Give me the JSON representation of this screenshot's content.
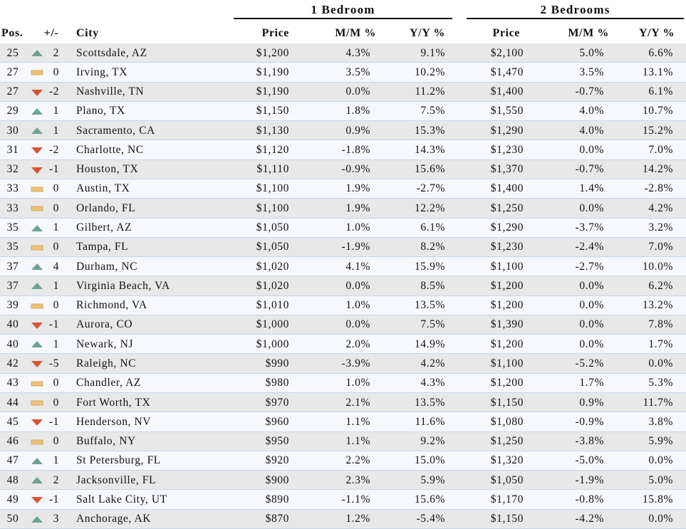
{
  "table": {
    "groups": [
      "1 Bedroom",
      "2 Bedrooms"
    ],
    "columns": [
      "Pos.",
      "+/-",
      "City",
      "Price",
      "M/M %",
      "Y/Y %",
      "Price",
      "M/M %",
      "Y/Y %"
    ],
    "rows": [
      [
        "25",
        "2",
        "Scottsdale, AZ",
        "$1,200",
        "4.3%",
        "9.1%",
        "$2,100",
        "5.0%",
        "6.6%"
      ],
      [
        "27",
        "0",
        "Irving, TX",
        "$1,190",
        "3.5%",
        "10.2%",
        "$1,470",
        "3.5%",
        "13.1%"
      ],
      [
        "27",
        "-2",
        "Nashville, TN",
        "$1,190",
        "0.0%",
        "11.2%",
        "$1,400",
        "-0.7%",
        "6.1%"
      ],
      [
        "29",
        "1",
        "Plano, TX",
        "$1,150",
        "1.8%",
        "7.5%",
        "$1,550",
        "4.0%",
        "10.7%"
      ],
      [
        "30",
        "1",
        "Sacramento, CA",
        "$1,130",
        "0.9%",
        "15.3%",
        "$1,290",
        "4.0%",
        "15.2%"
      ],
      [
        "31",
        "-2",
        "Charlotte, NC",
        "$1,120",
        "-1.8%",
        "14.3%",
        "$1,230",
        "0.0%",
        "7.0%"
      ],
      [
        "32",
        "-1",
        "Houston, TX",
        "$1,110",
        "-0.9%",
        "15.6%",
        "$1,370",
        "-0.7%",
        "14.2%"
      ],
      [
        "33",
        "0",
        "Austin, TX",
        "$1,100",
        "1.9%",
        "-2.7%",
        "$1,400",
        "1.4%",
        "-2.8%"
      ],
      [
        "33",
        "0",
        "Orlando, FL",
        "$1,100",
        "1.9%",
        "12.2%",
        "$1,250",
        "0.0%",
        "4.2%"
      ],
      [
        "35",
        "1",
        "Gilbert, AZ",
        "$1,050",
        "1.0%",
        "6.1%",
        "$1,290",
        "-3.7%",
        "3.2%"
      ],
      [
        "35",
        "0",
        "Tampa, FL",
        "$1,050",
        "-1.9%",
        "8.2%",
        "$1,230",
        "-2.4%",
        "7.0%"
      ],
      [
        "37",
        "4",
        "Durham, NC",
        "$1,020",
        "4.1%",
        "15.9%",
        "$1,100",
        "-2.7%",
        "10.0%"
      ],
      [
        "37",
        "1",
        "Virginia Beach, VA",
        "$1,020",
        "0.0%",
        "8.5%",
        "$1,200",
        "0.0%",
        "6.2%"
      ],
      [
        "39",
        "0",
        "Richmond, VA",
        "$1,010",
        "1.0%",
        "13.5%",
        "$1,200",
        "0.0%",
        "13.2%"
      ],
      [
        "40",
        "-1",
        "Aurora, CO",
        "$1,000",
        "0.0%",
        "7.5%",
        "$1,390",
        "0.0%",
        "7.8%"
      ],
      [
        "40",
        "1",
        "Newark, NJ",
        "$1,000",
        "2.0%",
        "14.9%",
        "$1,200",
        "0.0%",
        "1.7%"
      ],
      [
        "42",
        "-5",
        "Raleigh, NC",
        "$990",
        "-3.9%",
        "4.2%",
        "$1,100",
        "-5.2%",
        "0.0%"
      ],
      [
        "43",
        "0",
        "Chandler, AZ",
        "$980",
        "1.0%",
        "4.3%",
        "$1,200",
        "1.7%",
        "5.3%"
      ],
      [
        "44",
        "0",
        "Fort Worth, TX",
        "$970",
        "2.1%",
        "13.5%",
        "$1,150",
        "0.9%",
        "11.7%"
      ],
      [
        "45",
        "-1",
        "Henderson, NV",
        "$960",
        "1.1%",
        "11.6%",
        "$1,080",
        "-0.9%",
        "3.8%"
      ],
      [
        "46",
        "0",
        "Buffalo, NY",
        "$950",
        "1.1%",
        "9.2%",
        "$1,250",
        "-3.8%",
        "5.9%"
      ],
      [
        "47",
        "1",
        "St Petersburg, FL",
        "$920",
        "2.2%",
        "15.0%",
        "$1,320",
        "-5.0%",
        "0.0%"
      ],
      [
        "48",
        "2",
        "Jacksonville, FL",
        "$900",
        "2.3%",
        "5.9%",
        "$1,050",
        "-1.9%",
        "5.0%"
      ],
      [
        "49",
        "-1",
        "Salt Lake City, UT",
        "$890",
        "-1.1%",
        "15.6%",
        "$1,170",
        "-0.8%",
        "15.8%"
      ],
      [
        "50",
        "3",
        "Anchorage, AK",
        "$870",
        "1.2%",
        "-5.4%",
        "$1,150",
        "-4.2%",
        "0.0%"
      ]
    ]
  }
}
